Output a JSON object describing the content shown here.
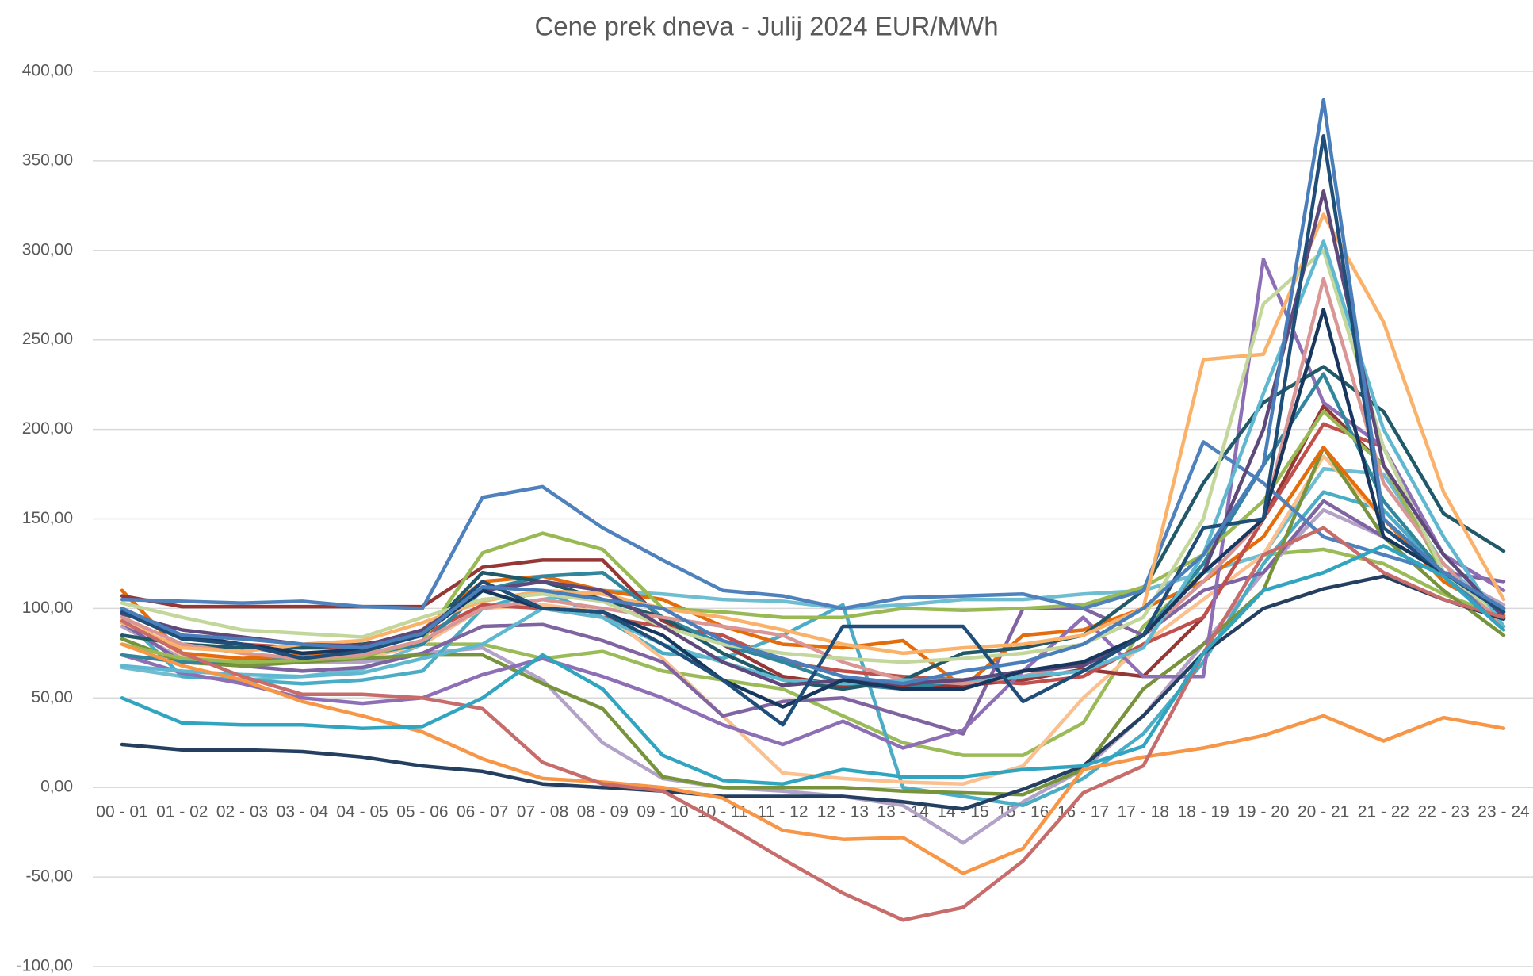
{
  "chart_data": {
    "type": "line",
    "title": "Cene  prek dneva - Julij 2024  EUR/MWh",
    "categories": [
      "00 - 01",
      "01 - 02",
      "02 - 03",
      "03 - 04",
      "04 - 05",
      "05 - 06",
      "06 - 07",
      "07 - 08",
      "08 - 09",
      "09 - 10",
      "10 - 11",
      "11 - 12",
      "12 - 13",
      "13 - 14",
      "14 - 15",
      "15 - 16",
      "16 - 17",
      "17 - 18",
      "18 - 19",
      "19 - 20",
      "20 - 21",
      "21 - 22",
      "22 - 23",
      "23 - 24"
    ],
    "ylim": [
      -100,
      400
    ],
    "yticks": [
      {
        "value": -100,
        "label": "-100,00"
      },
      {
        "value": -50,
        "label": "-50,00"
      },
      {
        "value": 0,
        "label": "0,00"
      },
      {
        "value": 50,
        "label": "50,00"
      },
      {
        "value": 100,
        "label": "100,00"
      },
      {
        "value": 150,
        "label": "150,00"
      },
      {
        "value": 200,
        "label": "200,00"
      },
      {
        "value": 250,
        "label": "250,00"
      },
      {
        "value": 300,
        "label": "300,00"
      },
      {
        "value": 350,
        "label": "350,00"
      },
      {
        "value": 400,
        "label": "400,00"
      }
    ],
    "grid": true,
    "series": [
      {
        "color": "#9bbb59",
        "values": [
          85,
          80,
          78,
          75,
          75,
          80,
          80,
          72,
          76,
          65,
          60,
          55,
          40,
          25,
          18,
          18,
          36,
          90,
          120,
          130,
          133,
          125,
          108,
          95
        ]
      },
      {
        "color": "#6fbdd1",
        "values": [
          67,
          62,
          60,
          62,
          66,
          80,
          100,
          105,
          110,
          108,
          105,
          104,
          100,
          102,
          105,
          105,
          108,
          110,
          120,
          130,
          178,
          175,
          125,
          95
        ]
      },
      {
        "color": "#b3a2c7",
        "values": [
          90,
          72,
          70,
          70,
          70,
          75,
          78,
          60,
          25,
          5,
          0,
          -2,
          -5,
          -10,
          -31,
          -8,
          10,
          40,
          80,
          120,
          155,
          140,
          120,
          102
        ]
      },
      {
        "color": "#4bacc6",
        "values": [
          95,
          62,
          60,
          58,
          60,
          65,
          100,
          110,
          95,
          75,
          72,
          85,
          102,
          0,
          -5,
          -10,
          5,
          30,
          70,
          125,
          165,
          155,
          120,
          100
        ]
      },
      {
        "color": "#fac090",
        "values": [
          96,
          74,
          72,
          70,
          72,
          80,
          100,
          102,
          98,
          72,
          40,
          8,
          5,
          3,
          2,
          12,
          50,
          80,
          105,
          130,
          185,
          150,
          120,
          100
        ]
      },
      {
        "color": "#8064a2",
        "values": [
          92,
          70,
          68,
          65,
          67,
          75,
          90,
          91,
          82,
          70,
          40,
          48,
          50,
          40,
          30,
          100,
          100,
          85,
          110,
          120,
          160,
          140,
          120,
          115
        ]
      },
      {
        "color": "#77933c",
        "values": [
          83,
          70,
          68,
          70,
          72,
          74,
          74,
          58,
          44,
          6,
          0,
          0,
          0,
          -2,
          -3,
          -4,
          10,
          55,
          80,
          110,
          190,
          140,
          110,
          85
        ]
      },
      {
        "color": "#e46c0a",
        "values": [
          110,
          75,
          72,
          74,
          76,
          88,
          115,
          118,
          110,
          105,
          90,
          80,
          78,
          82,
          56,
          85,
          88,
          100,
          115,
          140,
          190,
          150,
          115,
          96
        ]
      },
      {
        "color": "#953735",
        "values": [
          107,
          101,
          101,
          101,
          101,
          101,
          123,
          127,
          127,
          93,
          80,
          62,
          57,
          57,
          57,
          60,
          66,
          62,
          95,
          150,
          213,
          180,
          120,
          100
        ]
      },
      {
        "color": "#c0504d",
        "values": [
          100,
          85,
          80,
          78,
          78,
          85,
          102,
          100,
          95,
          90,
          85,
          70,
          65,
          62,
          60,
          58,
          62,
          80,
          95,
          150,
          203,
          190,
          120,
          90
        ]
      },
      {
        "color": "#8e6fb5",
        "values": [
          74,
          64,
          58,
          50,
          47,
          50,
          63,
          72,
          62,
          50,
          35,
          24,
          37,
          22,
          32,
          65,
          95,
          62,
          62,
          295,
          215,
          190,
          130,
          110
        ]
      },
      {
        "color": "#31859c",
        "values": [
          74,
          70,
          70,
          72,
          74,
          80,
          110,
          118,
          120,
          95,
          80,
          70,
          58,
          55,
          60,
          62,
          70,
          85,
          125,
          180,
          231,
          160,
          120,
          100
        ]
      },
      {
        "color": "#215968",
        "values": [
          85,
          80,
          78,
          78,
          80,
          85,
          120,
          115,
          105,
          95,
          75,
          60,
          55,
          60,
          75,
          78,
          85,
          110,
          170,
          215,
          235,
          210,
          153,
          132
        ]
      },
      {
        "color": "#98b954",
        "values": [
          80,
          72,
          70,
          71,
          73,
          82,
          131,
          142,
          133,
          100,
          98,
          95,
          95,
          100,
          99,
          100,
          102,
          112,
          130,
          160,
          210,
          180,
          120,
          100
        ]
      },
      {
        "color": "#4f81bd",
        "values": [
          105,
          104,
          103,
          104,
          101,
          100,
          162,
          168,
          145,
          127,
          110,
          107,
          100,
          106,
          107,
          108,
          100,
          110,
          193,
          170,
          140,
          130,
          120,
          90
        ]
      },
      {
        "color": "#d99694",
        "values": [
          95,
          80,
          75,
          72,
          74,
          82,
          100,
          105,
          100,
          95,
          90,
          85,
          70,
          60,
          58,
          62,
          70,
          85,
          115,
          150,
          284,
          170,
          125,
          90
        ]
      },
      {
        "color": "#fab26b",
        "values": [
          92,
          78,
          76,
          80,
          82,
          92,
          104,
          110,
          108,
          100,
          95,
          88,
          80,
          75,
          78,
          80,
          85,
          100,
          239,
          242,
          320,
          260,
          165,
          105
        ]
      },
      {
        "color": "#c3d69b",
        "values": [
          103,
          95,
          88,
          86,
          84,
          95,
          105,
          108,
          104,
          90,
          80,
          75,
          72,
          70,
          72,
          75,
          80,
          95,
          150,
          270,
          300,
          190,
          120,
          95
        ]
      },
      {
        "color": "#5fb8d0",
        "values": [
          68,
          65,
          63,
          62,
          64,
          72,
          80,
          100,
          95,
          80,
          70,
          60,
          58,
          60,
          60,
          62,
          65,
          78,
          130,
          220,
          305,
          200,
          140,
          90
        ]
      },
      {
        "color": "#5f497a",
        "values": [
          97,
          88,
          84,
          80,
          79,
          88,
          110,
          115,
          110,
          90,
          70,
          57,
          60,
          58,
          60,
          65,
          68,
          85,
          120,
          200,
          333,
          180,
          130,
          95
        ]
      },
      {
        "color": "#17375e",
        "values": [
          98,
          85,
          80,
          75,
          77,
          86,
          110,
          100,
          98,
          85,
          60,
          45,
          60,
          55,
          55,
          65,
          70,
          85,
          120,
          150,
          267,
          140,
          120,
          98
        ]
      },
      {
        "color": "#1f4e79",
        "values": [
          98,
          83,
          80,
          72,
          76,
          85,
          115,
          100,
          98,
          80,
          60,
          35,
          90,
          90,
          90,
          48,
          65,
          85,
          145,
          150,
          364,
          145,
          120,
          98
        ]
      },
      {
        "color": "#4a7ebb",
        "values": [
          100,
          85,
          83,
          80,
          78,
          86,
          112,
          110,
          105,
          100,
          82,
          72,
          62,
          58,
          65,
          70,
          80,
          100,
          130,
          180,
          384,
          150,
          120,
          100
        ]
      },
      {
        "color": "#243f60",
        "values": [
          24,
          21,
          21,
          20,
          17,
          12,
          9,
          2,
          0,
          -2,
          -5,
          -5,
          -5,
          -8,
          -12,
          -1,
          12,
          40,
          75,
          100,
          111,
          118,
          105,
          94
        ]
      },
      {
        "color": "#f79646",
        "values": [
          80,
          68,
          60,
          48,
          40,
          31,
          16,
          5,
          3,
          0,
          -6,
          -24,
          -29,
          -28,
          -48,
          -34,
          10,
          17,
          22,
          29,
          40,
          26,
          39,
          33
        ]
      },
      {
        "color": "#c76c6a",
        "values": [
          93,
          75,
          62,
          52,
          52,
          50,
          44,
          14,
          2,
          -2,
          -20,
          -40,
          -59,
          -74,
          -67,
          -41,
          -3,
          12,
          75,
          130,
          145,
          120,
          105,
          95
        ]
      },
      {
        "color": "#31a5c0",
        "values": [
          50,
          36,
          35,
          35,
          33,
          34,
          50,
          74,
          55,
          18,
          4,
          2,
          10,
          6,
          6,
          10,
          12,
          23,
          75,
          110,
          120,
          135,
          118,
          88
        ]
      }
    ]
  }
}
